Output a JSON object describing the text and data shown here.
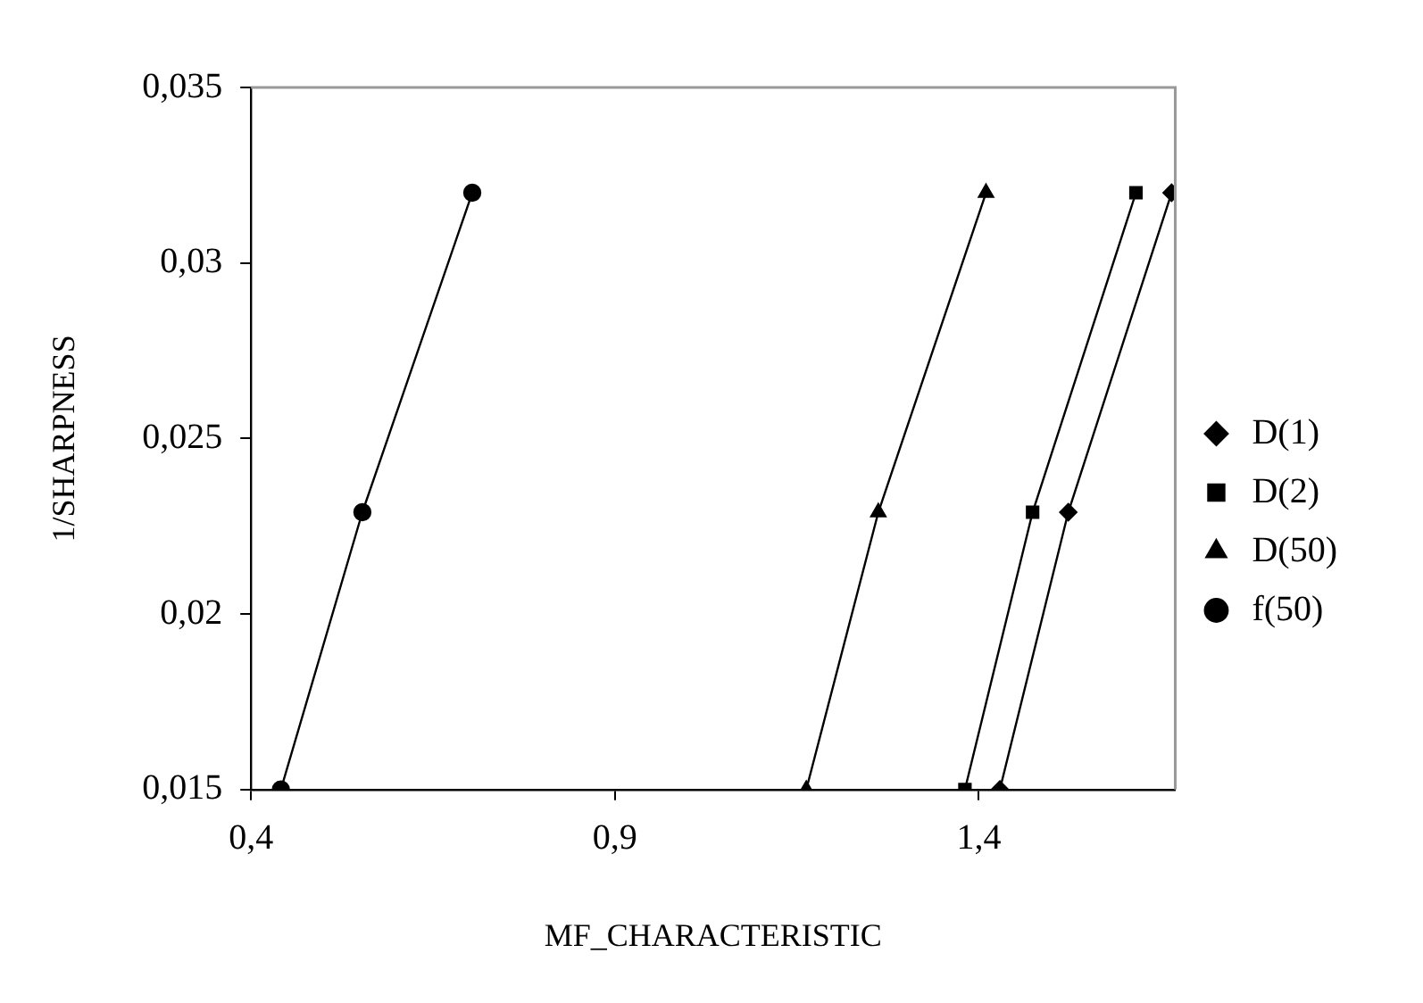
{
  "chart_data": {
    "type": "line",
    "xlabel": "MF_CHARACTERISTIC",
    "ylabel": "1/SHARPNESS",
    "xlim": [
      0.4,
      1.67
    ],
    "xticks": [
      {
        "value": 0.4,
        "label": "0,4"
      },
      {
        "value": 0.9,
        "label": "0,9"
      },
      {
        "value": 1.4,
        "label": "1,4"
      }
    ],
    "ylim": [
      0.015,
      0.035
    ],
    "yticks": [
      {
        "value": 0.015,
        "label": "0,015"
      },
      {
        "value": 0.02,
        "label": "0,02"
      },
      {
        "value": 0.025,
        "label": "0,025"
      },
      {
        "value": 0.03,
        "label": "0,03"
      },
      {
        "value": 0.035,
        "label": "0,035"
      }
    ],
    "grid": false,
    "legend": "right",
    "line_style": "solid",
    "series": [
      {
        "name": "D(1)",
        "color": "#000000",
        "marker": "diamond",
        "x": [
          1.429,
          1.523,
          1.665
        ],
        "values": [
          0.015,
          0.0229,
          0.032
        ]
      },
      {
        "name": "D(2)",
        "color": "#000000",
        "marker": "square",
        "x": [
          1.381,
          1.474,
          1.616
        ],
        "values": [
          0.015,
          0.0229,
          0.032
        ]
      },
      {
        "name": "D(50)",
        "color": "#000000",
        "marker": "triangle",
        "x": [
          1.163,
          1.262,
          1.41
        ],
        "values": [
          0.015,
          0.0229,
          0.032
        ]
      },
      {
        "name": "f(50)",
        "color": "#000000",
        "marker": "circle",
        "x": [
          0.441,
          0.553,
          0.704
        ],
        "values": [
          0.015,
          0.0229,
          0.032
        ]
      }
    ]
  }
}
